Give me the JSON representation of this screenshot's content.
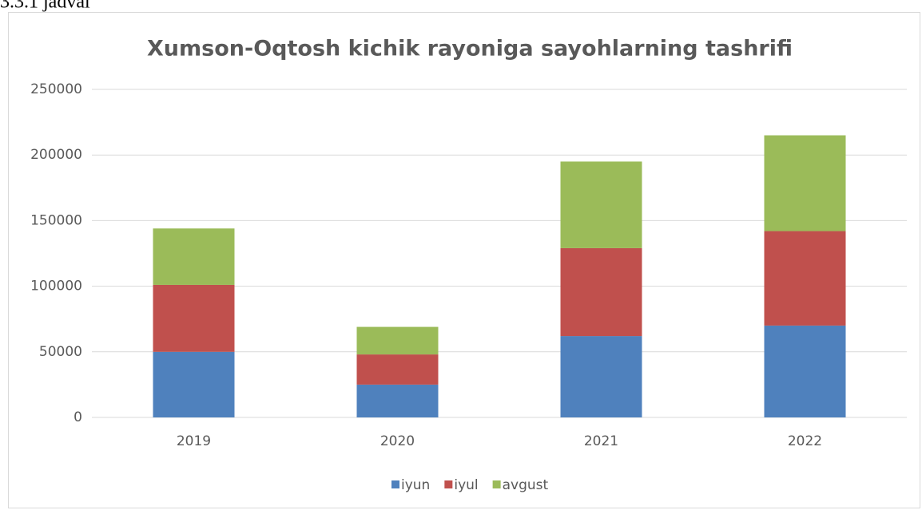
{
  "caption": "3.3.1 jadval",
  "chart_data": {
    "type": "stacked_bar",
    "title": "Xumson-Oqtosh kichik rayoniga sayohlarning tashrifi",
    "categories": [
      "2019",
      "2020",
      "2021",
      "2022"
    ],
    "series": [
      {
        "name": "iyun",
        "color": "#4f81bd",
        "values": [
          50000,
          25000,
          62000,
          70000
        ]
      },
      {
        "name": "iyul",
        "color": "#c0504d",
        "values": [
          51000,
          23000,
          67000,
          72000
        ]
      },
      {
        "name": "avgust",
        "color": "#9bbb59",
        "values": [
          43000,
          21000,
          66000,
          73000
        ]
      }
    ],
    "ylim": [
      0,
      250000
    ],
    "yticks": [
      0,
      50000,
      100000,
      150000,
      200000,
      250000
    ],
    "grid": true,
    "legend": "bottom"
  }
}
